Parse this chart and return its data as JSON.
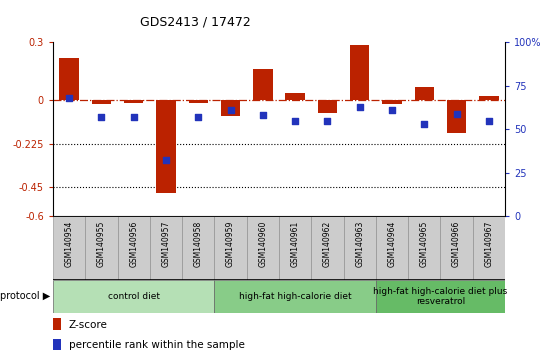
{
  "title": "GDS2413 / 17472",
  "samples": [
    "GSM140954",
    "GSM140955",
    "GSM140956",
    "GSM140957",
    "GSM140958",
    "GSM140959",
    "GSM140960",
    "GSM140961",
    "GSM140962",
    "GSM140963",
    "GSM140964",
    "GSM140965",
    "GSM140966",
    "GSM140967"
  ],
  "z_scores": [
    0.22,
    -0.02,
    -0.015,
    -0.48,
    -0.015,
    -0.08,
    0.16,
    0.04,
    -0.065,
    0.285,
    -0.02,
    0.07,
    -0.17,
    0.02
  ],
  "pct_ranks": [
    68,
    57,
    57,
    32,
    57,
    61,
    58,
    55,
    55,
    63,
    61,
    53,
    59,
    55
  ],
  "groups": [
    {
      "label": "control diet",
      "start": 0,
      "end": 4,
      "color": "#b5e0b5"
    },
    {
      "label": "high-fat high-calorie diet",
      "start": 5,
      "end": 9,
      "color": "#88cc88"
    },
    {
      "label": "high-fat high-calorie diet plus\nresveratrol",
      "start": 10,
      "end": 13,
      "color": "#66bb66"
    }
  ],
  "ylim_left": [
    -0.6,
    0.3
  ],
  "ylim_right": [
    0,
    100
  ],
  "yticks_left": [
    -0.6,
    -0.45,
    -0.225,
    0,
    0.3
  ],
  "yticks_right": [
    0,
    25,
    50,
    75,
    100
  ],
  "hline_y": 0,
  "dotted_lines": [
    -0.225,
    -0.45
  ],
  "bar_color": "#bb2200",
  "dot_color": "#2233bb",
  "label_bg": "#cccccc",
  "background_color": "#ffffff"
}
